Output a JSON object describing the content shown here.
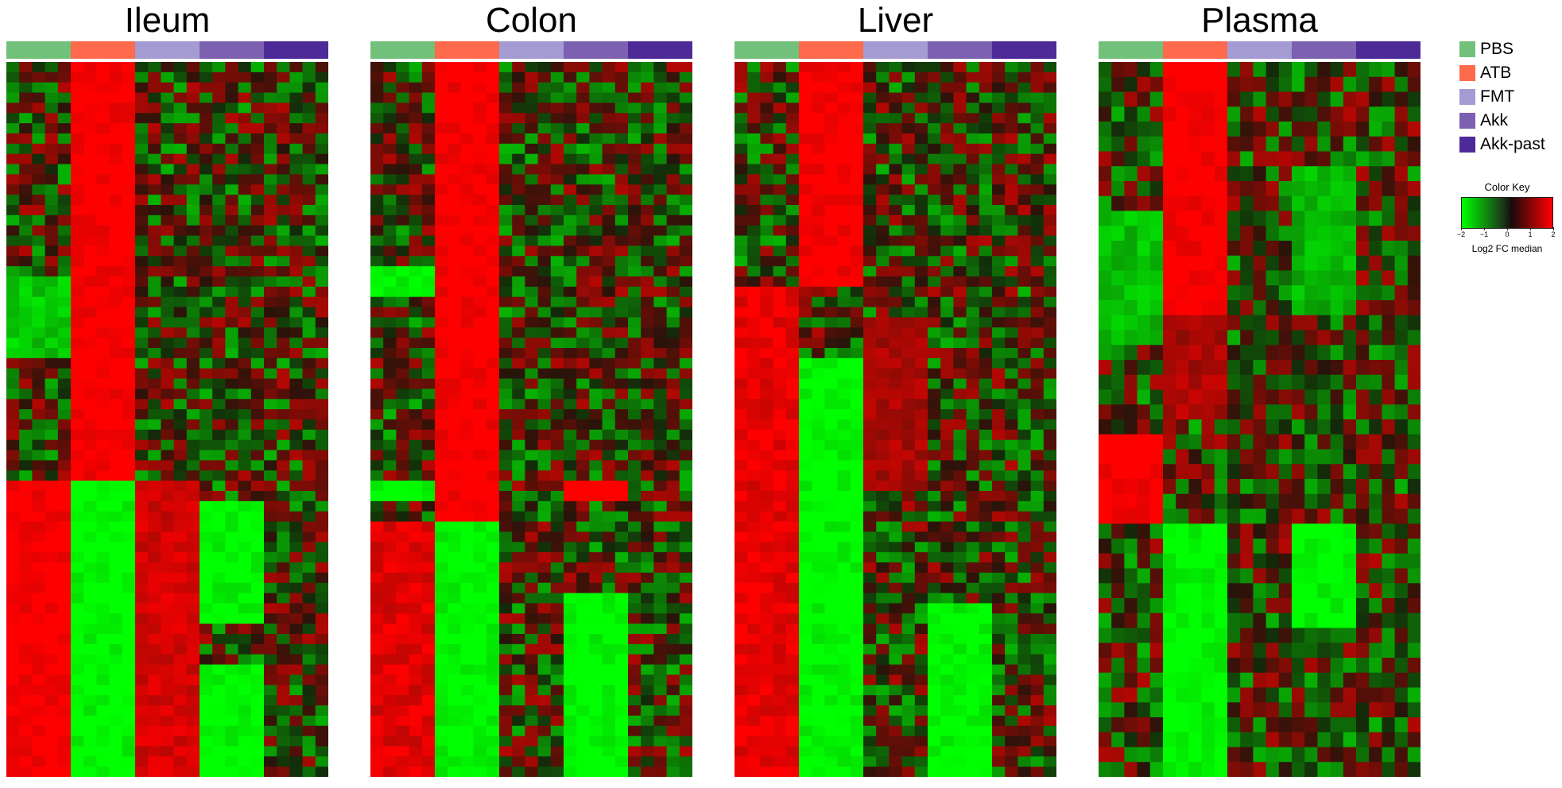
{
  "chart_data": {
    "type": "heatmap",
    "panels": [
      {
        "title": "Ileum",
        "rows": 70
      },
      {
        "title": "Colon",
        "rows": 70
      },
      {
        "title": "Liver",
        "rows": 70
      },
      {
        "title": "Plasma",
        "rows": 48
      }
    ],
    "groups": [
      {
        "name": "PBS",
        "color": "#72C17A",
        "columns": 5
      },
      {
        "name": "ATB",
        "color": "#FF6A4D",
        "columns": 5
      },
      {
        "name": "FMT",
        "color": "#A49BD2",
        "columns": 5
      },
      {
        "name": "Akk",
        "color": "#7B61B0",
        "columns": 5
      },
      {
        "name": "Akk-past",
        "color": "#4E2A98",
        "columns": 5
      }
    ],
    "color_key": {
      "title": "Color Key",
      "label": "Log2 FC median",
      "ticks": [
        "−2",
        "−1",
        "0",
        "1",
        "2"
      ],
      "range": [
        -2,
        2
      ],
      "low_color": "#00FF00",
      "mid_color": "#000000",
      "high_color": "#FF0000"
    },
    "legend_placement": "right",
    "note": "cell values are illustrative; individual cells are not readable from the image"
  }
}
